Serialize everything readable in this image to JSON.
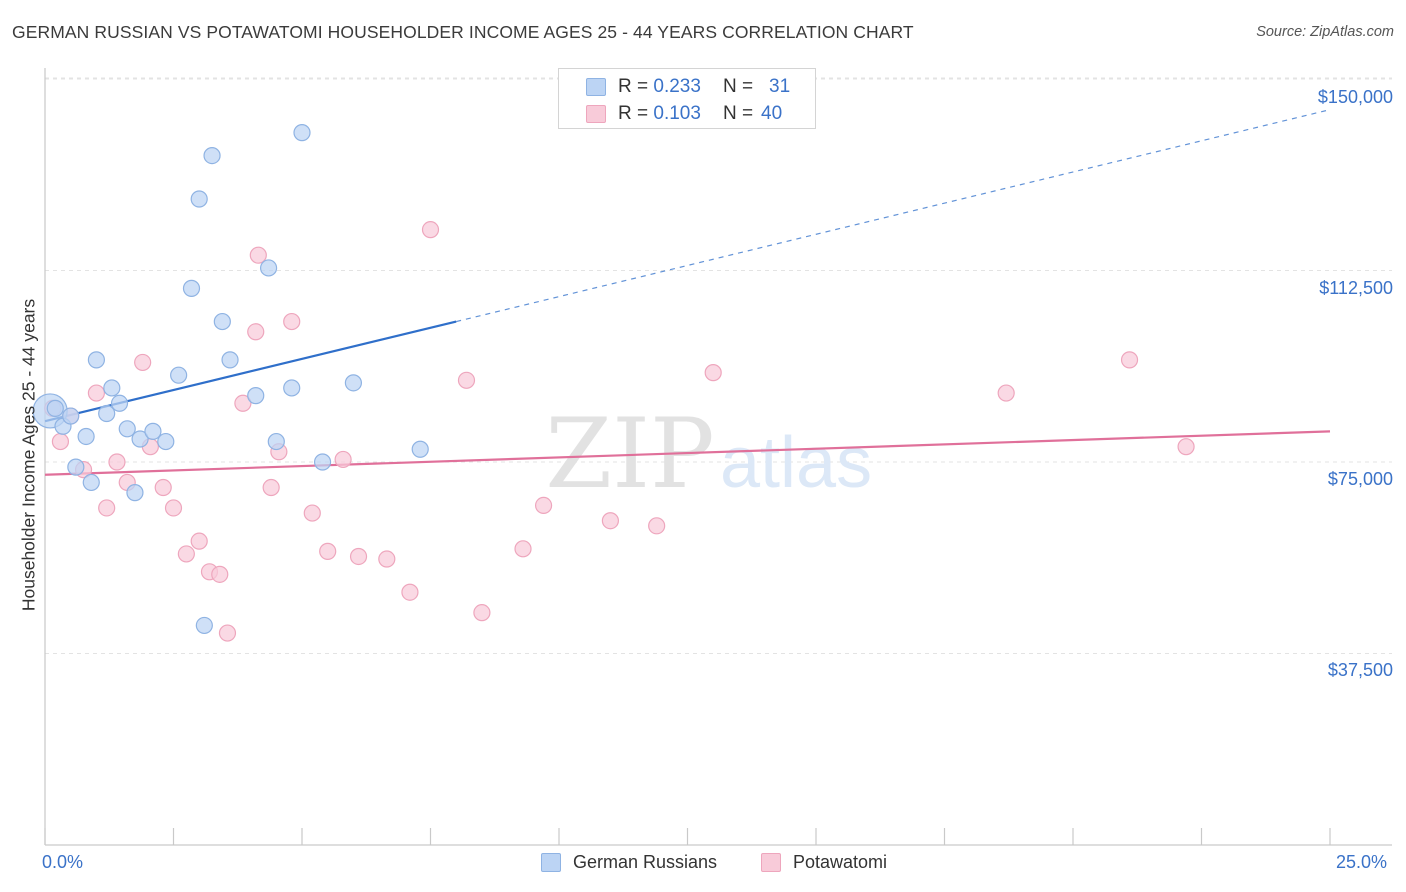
{
  "title": "GERMAN RUSSIAN VS POTAWATOMI HOUSEHOLDER INCOME AGES 25 - 44 YEARS CORRELATION CHART",
  "source": "Source: ZipAtlas.com",
  "watermark": {
    "zip": "ZIP",
    "atlas": "atlas"
  },
  "legend": {
    "rows": [
      {
        "r_label": "R =",
        "r_value": "0.233",
        "n_label": "N =",
        "n_value": "31"
      },
      {
        "r_label": "R =",
        "r_value": "0.103",
        "n_label": "N =",
        "n_value": "40"
      }
    ]
  },
  "bottom_legend": [
    "German Russians",
    "Potawatomi"
  ],
  "x_tick_labels": {
    "left": "0.0%",
    "right": "25.0%"
  },
  "y_tick_labels": [
    "$150,000",
    "$112,500",
    "$75,000",
    "$37,500"
  ],
  "colors": {
    "blue_fill": "#bcd4f4",
    "blue_stroke": "#8fb3e3",
    "blue_line": "#2f6fca",
    "pink_fill": "#f8cbd9",
    "pink_stroke": "#eea6bd",
    "pink_line": "#e0709a",
    "tick_text": "#3a72c8",
    "grid": "#e3e3e3"
  },
  "chart_data": {
    "type": "scatter",
    "title": "GERMAN RUSSIAN VS POTAWATOMI HOUSEHOLDER INCOME AGES 25 - 44 YEARS CORRELATION CHART",
    "xlabel": "",
    "ylabel": "Householder Income Ages 25 - 44 years",
    "xlim": [
      0,
      25
    ],
    "ylim": [
      0,
      155000
    ],
    "y_ticks": [
      37500,
      75000,
      112500,
      150000
    ],
    "grid": true,
    "series": [
      {
        "name": "German Russians",
        "r": 0.233,
        "n": 31,
        "trend": {
          "x0": 0,
          "y0": 83000,
          "x1": 8,
          "y1": 102500,
          "dashed_to_x": 25,
          "dashed_y_end": 144000
        },
        "points": [
          [
            0.1,
            85000,
            "large"
          ],
          [
            0.2,
            85500
          ],
          [
            0.35,
            82000
          ],
          [
            0.5,
            84000
          ],
          [
            0.6,
            74000
          ],
          [
            0.8,
            80000
          ],
          [
            0.9,
            71000
          ],
          [
            1.0,
            95000
          ],
          [
            1.2,
            84500
          ],
          [
            1.3,
            89500
          ],
          [
            1.45,
            86500
          ],
          [
            1.6,
            81500
          ],
          [
            1.75,
            69000
          ],
          [
            1.85,
            79500
          ],
          [
            2.1,
            81000
          ],
          [
            2.35,
            79000
          ],
          [
            2.6,
            92000
          ],
          [
            2.85,
            109000
          ],
          [
            3.0,
            126500
          ],
          [
            3.1,
            43000
          ],
          [
            3.25,
            135000
          ],
          [
            3.45,
            102500
          ],
          [
            3.6,
            95000
          ],
          [
            4.1,
            88000
          ],
          [
            4.35,
            113000
          ],
          [
            4.5,
            79000
          ],
          [
            4.8,
            89500
          ],
          [
            5.0,
            139500
          ],
          [
            5.4,
            75000
          ],
          [
            6.0,
            90500
          ],
          [
            7.3,
            77500
          ]
        ]
      },
      {
        "name": "Potawatomi",
        "r": 0.103,
        "n": 40,
        "trend": {
          "x0": 0,
          "y0": 72500,
          "x1": 25,
          "y1": 81000
        },
        "points": [
          [
            0.3,
            79000
          ],
          [
            0.5,
            84000
          ],
          [
            0.75,
            73500
          ],
          [
            1.0,
            88500
          ],
          [
            1.2,
            66000
          ],
          [
            1.4,
            75000
          ],
          [
            1.6,
            71000
          ],
          [
            1.9,
            94500
          ],
          [
            2.05,
            78000
          ],
          [
            2.3,
            70000
          ],
          [
            2.5,
            66000
          ],
          [
            2.75,
            57000
          ],
          [
            3.0,
            59500
          ],
          [
            3.2,
            53500
          ],
          [
            3.4,
            53000
          ],
          [
            3.55,
            41500
          ],
          [
            3.85,
            86500
          ],
          [
            4.1,
            100500
          ],
          [
            4.15,
            115500
          ],
          [
            4.4,
            70000
          ],
          [
            4.55,
            77000
          ],
          [
            4.8,
            102500
          ],
          [
            5.2,
            65000
          ],
          [
            5.5,
            57500
          ],
          [
            5.8,
            75500
          ],
          [
            6.1,
            56500
          ],
          [
            6.65,
            56000
          ],
          [
            7.1,
            49500
          ],
          [
            7.5,
            120500
          ],
          [
            8.2,
            91000
          ],
          [
            8.5,
            45500
          ],
          [
            9.3,
            58000
          ],
          [
            9.7,
            66500
          ],
          [
            11.0,
            63500
          ],
          [
            11.9,
            62500
          ],
          [
            13.0,
            92500
          ],
          [
            18.7,
            88500
          ],
          [
            21.1,
            95000
          ],
          [
            22.2,
            78000
          ],
          [
            0.15,
            85500
          ]
        ]
      }
    ]
  }
}
